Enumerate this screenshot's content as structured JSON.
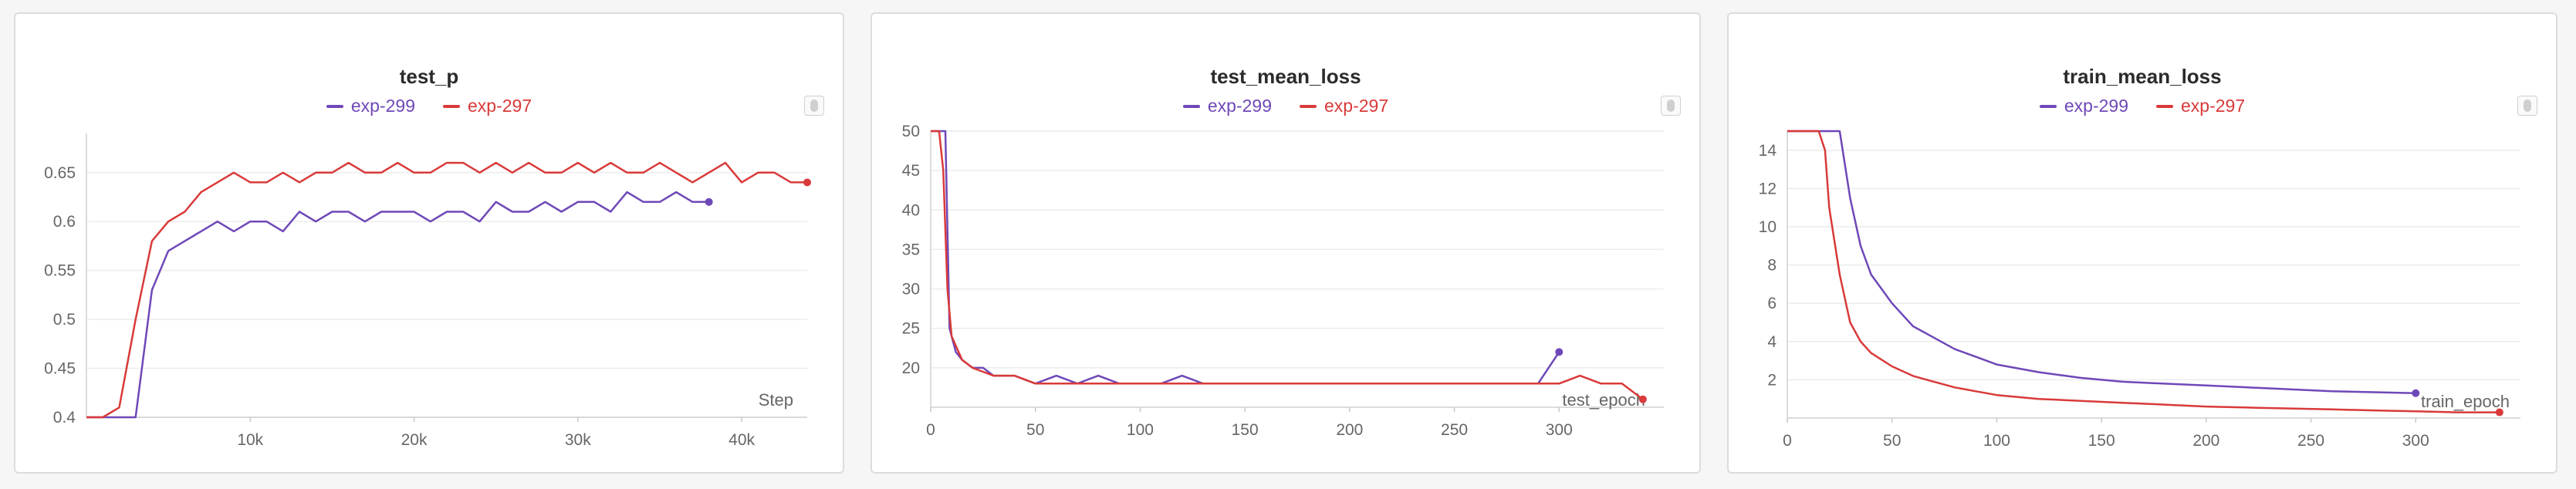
{
  "colors": {
    "exp_299": "#6f48b8",
    "exp_297": "#d93a3a"
  },
  "chart_data": [
    {
      "type": "line",
      "title": "test_p",
      "xlabel": "Step",
      "xlim": [
        0,
        44000
      ],
      "ylim": [
        0.4,
        0.69
      ],
      "x_ticks": [
        10000,
        20000,
        30000,
        40000
      ],
      "x_tick_labels": [
        "10k",
        "20k",
        "30k",
        "40k"
      ],
      "y_ticks": [
        0.4,
        0.45,
        0.5,
        0.55,
        0.6,
        0.65
      ],
      "y_tick_labels": [
        "0.4",
        "0.45",
        "0.5",
        "0.55",
        "0.6",
        "0.65"
      ],
      "grid": "horizontal",
      "legend_position": "top-center",
      "series": [
        {
          "name": "exp-299",
          "color": "#6f48b8",
          "x": [
            0,
            1000,
            2000,
            3000,
            4000,
            5000,
            6000,
            7000,
            8000,
            9000,
            10000,
            11000,
            12000,
            13000,
            14000,
            15000,
            16000,
            17000,
            18000,
            19000,
            20000,
            21000,
            22000,
            23000,
            24000,
            25000,
            26000,
            27000,
            28000,
            29000,
            30000,
            31000,
            32000,
            33000,
            34000,
            35000,
            36000,
            37000,
            38000
          ],
          "y": [
            0.4,
            0.4,
            0.4,
            0.4,
            0.53,
            0.57,
            0.58,
            0.59,
            0.6,
            0.59,
            0.6,
            0.6,
            0.59,
            0.61,
            0.6,
            0.61,
            0.61,
            0.6,
            0.61,
            0.61,
            0.61,
            0.6,
            0.61,
            0.61,
            0.6,
            0.62,
            0.61,
            0.61,
            0.62,
            0.61,
            0.62,
            0.62,
            0.61,
            0.63,
            0.62,
            0.62,
            0.63,
            0.62,
            0.62
          ]
        },
        {
          "name": "exp-297",
          "color": "#d93a3a",
          "x": [
            0,
            1000,
            2000,
            3000,
            4000,
            5000,
            6000,
            7000,
            8000,
            9000,
            10000,
            11000,
            12000,
            13000,
            14000,
            15000,
            16000,
            17000,
            18000,
            19000,
            20000,
            21000,
            22000,
            23000,
            24000,
            25000,
            26000,
            27000,
            28000,
            29000,
            30000,
            31000,
            32000,
            33000,
            34000,
            35000,
            36000,
            37000,
            38000,
            39000,
            40000,
            41000,
            42000,
            43000,
            44000
          ],
          "y": [
            0.4,
            0.4,
            0.41,
            0.5,
            0.58,
            0.6,
            0.61,
            0.63,
            0.64,
            0.65,
            0.64,
            0.64,
            0.65,
            0.64,
            0.65,
            0.65,
            0.66,
            0.65,
            0.65,
            0.66,
            0.65,
            0.65,
            0.66,
            0.66,
            0.65,
            0.66,
            0.65,
            0.66,
            0.65,
            0.65,
            0.66,
            0.65,
            0.66,
            0.65,
            0.65,
            0.66,
            0.65,
            0.64,
            0.65,
            0.66,
            0.64,
            0.65,
            0.65,
            0.64,
            0.64
          ]
        }
      ]
    },
    {
      "type": "line",
      "title": "test_mean_loss",
      "xlabel": "test_epoch",
      "xlim": [
        0,
        350
      ],
      "ylim": [
        15,
        50
      ],
      "x_ticks": [
        0,
        50,
        100,
        150,
        200,
        250,
        300
      ],
      "x_tick_labels": [
        "0",
        "50",
        "100",
        "150",
        "200",
        "250",
        "300"
      ],
      "y_ticks": [
        20,
        25,
        30,
        35,
        40,
        45,
        50
      ],
      "y_tick_labels": [
        "20",
        "25",
        "30",
        "35",
        "40",
        "45",
        "50"
      ],
      "grid": "horizontal",
      "legend_position": "top-center",
      "series": [
        {
          "name": "exp-299",
          "color": "#6f48b8",
          "x": [
            0,
            3,
            5,
            7,
            9,
            12,
            15,
            20,
            25,
            30,
            40,
            50,
            60,
            70,
            80,
            90,
            100,
            110,
            120,
            130,
            140,
            150,
            160,
            170,
            180,
            190,
            200,
            210,
            220,
            230,
            240,
            250,
            260,
            270,
            280,
            290,
            300
          ],
          "y": [
            50,
            50,
            50,
            50,
            25,
            22,
            21,
            20,
            20,
            19,
            19,
            18,
            19,
            18,
            19,
            18,
            18,
            18,
            19,
            18,
            18,
            18,
            18,
            18,
            18,
            18,
            18,
            18,
            18,
            18,
            18,
            18,
            18,
            18,
            18,
            18,
            22
          ]
        },
        {
          "name": "exp-297",
          "color": "#d93a3a",
          "x": [
            0,
            2,
            4,
            6,
            8,
            10,
            15,
            20,
            30,
            40,
            50,
            60,
            70,
            80,
            90,
            100,
            110,
            120,
            130,
            140,
            150,
            160,
            170,
            180,
            190,
            200,
            210,
            220,
            230,
            240,
            250,
            260,
            270,
            280,
            290,
            300,
            310,
            320,
            330,
            340
          ],
          "y": [
            50,
            50,
            50,
            45,
            30,
            24,
            21,
            20,
            19,
            19,
            18,
            18,
            18,
            18,
            18,
            18,
            18,
            18,
            18,
            18,
            18,
            18,
            18,
            18,
            18,
            18,
            18,
            18,
            18,
            18,
            18,
            18,
            18,
            18,
            18,
            18,
            19,
            18,
            18,
            16
          ]
        }
      ]
    },
    {
      "type": "line",
      "title": "train_mean_loss",
      "xlabel": "train_epoch",
      "xlim": [
        0,
        350
      ],
      "ylim": [
        0,
        15
      ],
      "x_ticks": [
        0,
        50,
        100,
        150,
        200,
        250,
        300
      ],
      "x_tick_labels": [
        "0",
        "50",
        "100",
        "150",
        "200",
        "250",
        "300"
      ],
      "y_ticks": [
        2,
        4,
        6,
        8,
        10,
        12,
        14
      ],
      "y_tick_labels": [
        "2",
        "4",
        "6",
        "8",
        "10",
        "12",
        "14"
      ],
      "grid": "horizontal",
      "legend_position": "top-center",
      "series": [
        {
          "name": "exp-299",
          "color": "#6f48b8",
          "x": [
            0,
            10,
            20,
            25,
            30,
            35,
            40,
            50,
            60,
            70,
            80,
            90,
            100,
            120,
            140,
            160,
            180,
            200,
            220,
            240,
            260,
            280,
            300
          ],
          "y": [
            15,
            15,
            15,
            15,
            11.5,
            9,
            7.5,
            6,
            4.8,
            4.2,
            3.6,
            3.2,
            2.8,
            2.4,
            2.1,
            1.9,
            1.8,
            1.7,
            1.6,
            1.5,
            1.4,
            1.35,
            1.3
          ]
        },
        {
          "name": "exp-297",
          "color": "#d93a3a",
          "x": [
            0,
            10,
            15,
            18,
            20,
            25,
            30,
            35,
            40,
            50,
            60,
            70,
            80,
            90,
            100,
            120,
            140,
            160,
            180,
            200,
            220,
            240,
            260,
            280,
            300,
            320,
            340
          ],
          "y": [
            15,
            15,
            15,
            14,
            11,
            7.5,
            5,
            4,
            3.4,
            2.7,
            2.2,
            1.9,
            1.6,
            1.4,
            1.2,
            1.0,
            0.9,
            0.8,
            0.7,
            0.6,
            0.55,
            0.5,
            0.45,
            0.4,
            0.35,
            0.3,
            0.3
          ]
        }
      ]
    }
  ]
}
